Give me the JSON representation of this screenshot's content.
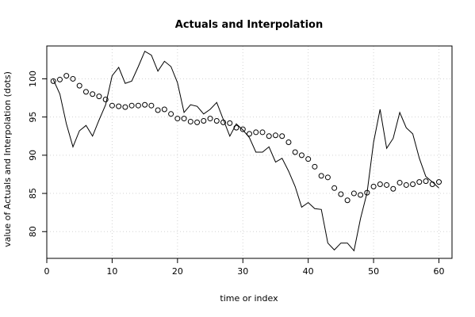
{
  "chart_data": {
    "type": "line",
    "title": "Actuals and Interpolation",
    "xlabel": "time or index",
    "ylabel": "value of Actuals and Interpolation (dots)",
    "xlim": [
      0,
      62
    ],
    "ylim": [
      76.5,
      104.3
    ],
    "x_ticks": [
      0,
      10,
      20,
      30,
      40,
      50,
      60
    ],
    "y_ticks": [
      80,
      85,
      90,
      95,
      100
    ],
    "grid": true,
    "series": [
      {
        "style": "line",
        "color": "#000000",
        "x": [
          1,
          2,
          3,
          4,
          5,
          6,
          7,
          8,
          9,
          10,
          11,
          12,
          13,
          14,
          15,
          16,
          17,
          18,
          19,
          20,
          21,
          22,
          23,
          24,
          25,
          26,
          27,
          28,
          29,
          30,
          31,
          32,
          33,
          34,
          35,
          36,
          37,
          38,
          39,
          40,
          41,
          42,
          43,
          44,
          45,
          46,
          47,
          48,
          49,
          50,
          51,
          52,
          53,
          54,
          55,
          56,
          57,
          58,
          59,
          60
        ],
        "values": [
          99.9,
          98.0,
          94.1,
          91.1,
          93.2,
          93.9,
          92.5,
          94.6,
          96.6,
          100.4,
          101.5,
          99.4,
          99.7,
          101.6,
          103.6,
          103.1,
          101.0,
          102.3,
          101.6,
          99.5,
          95.6,
          96.6,
          96.4,
          95.4,
          96.0,
          96.9,
          94.7,
          92.5,
          94.1,
          93.3,
          92.3,
          90.4,
          90.4,
          91.1,
          89.1,
          89.6,
          87.9,
          85.9,
          83.2,
          83.8,
          83.0,
          82.9,
          78.5,
          77.6,
          78.5,
          78.5,
          77.5,
          81.7,
          85.1,
          91.7,
          96.0,
          90.9,
          92.2,
          95.6,
          93.6,
          92.8,
          89.6,
          87.2,
          86.5,
          85.7
        ]
      },
      {
        "style": "points",
        "color": "#000000",
        "x": [
          1,
          2,
          3,
          4,
          5,
          6,
          7,
          8,
          9,
          10,
          11,
          12,
          13,
          14,
          15,
          16,
          17,
          18,
          19,
          20,
          21,
          22,
          23,
          24,
          25,
          26,
          27,
          28,
          29,
          30,
          31,
          32,
          33,
          34,
          35,
          36,
          37,
          38,
          39,
          40,
          41,
          42,
          43,
          44,
          45,
          46,
          47,
          48,
          49,
          50,
          51,
          52,
          53,
          54,
          55,
          56,
          57,
          58,
          59,
          60
        ],
        "values": [
          99.7,
          99.9,
          100.4,
          100.0,
          99.1,
          98.3,
          98.0,
          97.7,
          97.3,
          96.5,
          96.4,
          96.3,
          96.5,
          96.5,
          96.6,
          96.5,
          95.9,
          96.0,
          95.4,
          94.8,
          94.8,
          94.4,
          94.3,
          94.5,
          94.8,
          94.5,
          94.3,
          94.2,
          93.6,
          93.4,
          92.8,
          93.0,
          93.0,
          92.5,
          92.6,
          92.5,
          91.7,
          90.4,
          90.0,
          89.5,
          88.5,
          87.3,
          87.1,
          85.7,
          84.9,
          84.1,
          85.0,
          84.8,
          85.1,
          85.9,
          86.2,
          86.1,
          85.6,
          86.4,
          86.1,
          86.2,
          86.5,
          86.6,
          86.2,
          86.5
        ]
      }
    ]
  }
}
